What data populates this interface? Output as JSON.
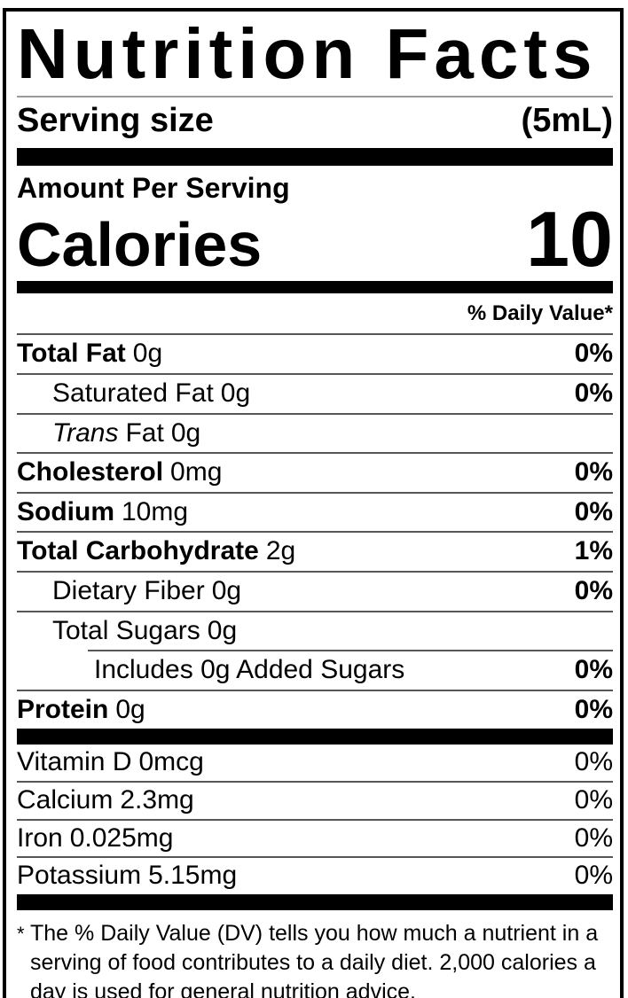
{
  "title": "Nutrition Facts",
  "serving": {
    "label": "Serving size",
    "value": "(5mL)"
  },
  "calories": {
    "header": "Amount Per Serving",
    "label": "Calories",
    "value": "10"
  },
  "daily_value_header": "% Daily Value*",
  "nutrients": {
    "total_fat": {
      "name": "Total Fat",
      "amount": "0g",
      "dv": "0%"
    },
    "saturated_fat": {
      "name": "Saturated Fat",
      "amount": "0g",
      "dv": "0%"
    },
    "trans_fat": {
      "name_italic": "Trans",
      "name_rest": "Fat",
      "amount": "0g"
    },
    "cholesterol": {
      "name": "Cholesterol",
      "amount": "0mg",
      "dv": "0%"
    },
    "sodium": {
      "name": "Sodium",
      "amount": "10mg",
      "dv": "0%"
    },
    "total_carbohydrate": {
      "name": "Total Carbohydrate",
      "amount": "2g",
      "dv": "1%"
    },
    "dietary_fiber": {
      "name": "Dietary Fiber",
      "amount": "0g",
      "dv": "0%"
    },
    "total_sugars": {
      "name": "Total Sugars",
      "amount": "0g"
    },
    "added_sugars": {
      "name": "Includes 0g Added Sugars",
      "dv": "0%"
    },
    "protein": {
      "name": "Protein",
      "amount": "0g",
      "dv": "0%"
    }
  },
  "micronutrients": [
    {
      "name": "Vitamin D",
      "amount": "0mcg",
      "dv": "0%"
    },
    {
      "name": "Calcium",
      "amount": "2.3mg",
      "dv": "0%"
    },
    {
      "name": "Iron",
      "amount": "0.025mg",
      "dv": "0%"
    },
    {
      "name": "Potassium",
      "amount": "5.15mg",
      "dv": "0%"
    }
  ],
  "footnote": {
    "marker": "*",
    "text": "The % Daily Value (DV) tells you how much a nutrient in a serving of food contributes to a daily diet. 2,000 calories a day is used for general nutrition advice."
  },
  "colors": {
    "ink": "#000000",
    "background": "#ffffff",
    "hairline": "#565656"
  }
}
